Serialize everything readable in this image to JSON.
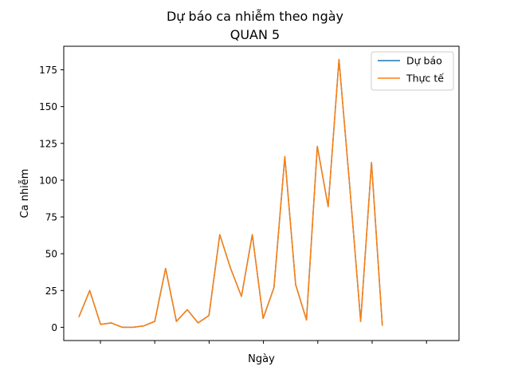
{
  "chart_data": {
    "type": "line",
    "title": "Dự báo ca nhiễm theo ngày",
    "subtitle": "QUAN 5",
    "xlabel": "Ngày",
    "ylabel": "Ca nhiễm",
    "x_tick_labels_visible": false,
    "x_tick_count": 7,
    "ylim": [
      -9,
      191
    ],
    "y_ticks": [
      0,
      25,
      50,
      75,
      100,
      125,
      150,
      175
    ],
    "grid": false,
    "legend_placement": "top-right",
    "series": [
      {
        "name": "Dự báo",
        "color": "#1f77b4",
        "values": [
          7,
          25,
          2,
          3,
          0,
          0,
          1,
          4,
          40,
          4,
          12,
          3,
          8,
          63,
          40,
          21,
          63,
          6,
          27,
          116,
          29,
          5,
          123,
          82,
          182,
          95,
          4,
          112,
          1
        ]
      },
      {
        "name": "Thực tế",
        "color": "#ff7f0e",
        "values": [
          7,
          25,
          2,
          3,
          0,
          0,
          1,
          4,
          40,
          4,
          12,
          3,
          8,
          63,
          40,
          21,
          63,
          6,
          27,
          116,
          29,
          5,
          123,
          82,
          182,
          95,
          4,
          112,
          1
        ]
      }
    ]
  }
}
